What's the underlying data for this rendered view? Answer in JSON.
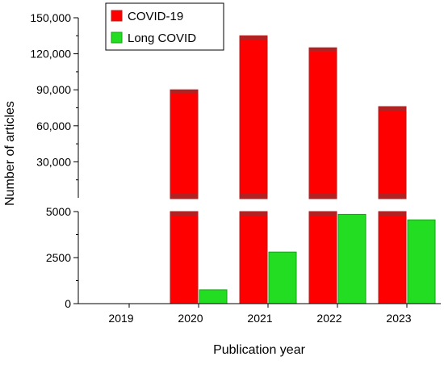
{
  "chart_data": {
    "type": "bar",
    "xlabel": "Publication year",
    "ylabel": "Number of articles",
    "categories": [
      "2019",
      "2020",
      "2021",
      "2022",
      "2023"
    ],
    "series": [
      {
        "name": "COVID-19",
        "color": "#ff0000",
        "edge_color": "#b22222",
        "values": [
          0,
          90000,
          135000,
          125000,
          76000
        ]
      },
      {
        "name": "Long COVID",
        "color": "#22dd22",
        "edge_color": "#1a9f1a",
        "values": [
          0,
          750,
          2800,
          4850,
          4550
        ]
      }
    ],
    "y_axis": {
      "broken": true,
      "lower_range": [
        0,
        5000
      ],
      "lower_ticks": [
        0,
        2500,
        5000
      ],
      "lower_tick_labels": [
        "0",
        "2500",
        "5000"
      ],
      "upper_range": [
        0,
        150000
      ],
      "upper_ticks": [
        30000,
        60000,
        90000,
        120000,
        150000
      ],
      "upper_tick_labels": [
        "30,000",
        "60,000",
        "90,000",
        "120,000",
        "150,000"
      ]
    },
    "legend": {
      "position": "top-left"
    },
    "grid": false
  }
}
